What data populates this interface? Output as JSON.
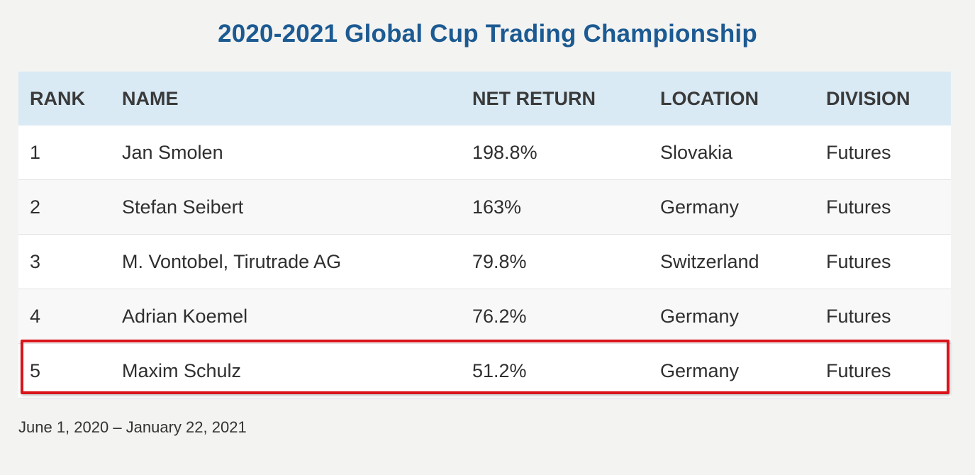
{
  "title": "2020-2021 Global Cup Trading Championship",
  "columns": {
    "rank": "RANK",
    "name": "NAME",
    "net_return": "NET RETURN",
    "location": "LOCATION",
    "division": "DIVISION"
  },
  "rows": [
    {
      "rank": "1",
      "name": "Jan Smolen",
      "net_return": "198.8%",
      "location": "Slovakia",
      "division": "Futures"
    },
    {
      "rank": "2",
      "name": "Stefan Seibert",
      "net_return": "163%",
      "location": "Germany",
      "division": "Futures"
    },
    {
      "rank": "3",
      "name": "M. Vontobel, Tirutrade AG",
      "net_return": "79.8%",
      "location": "Switzerland",
      "division": "Futures"
    },
    {
      "rank": "4",
      "name": "Adrian Koemel",
      "net_return": "76.2%",
      "location": "Germany",
      "division": "Futures"
    },
    {
      "rank": "5",
      "name": "Maxim Schulz",
      "net_return": "51.2%",
      "location": "Germany",
      "division": "Futures"
    }
  ],
  "highlighted_row": "5",
  "footnote": "June 1, 2020 – January 22, 2021",
  "colors": {
    "title": "#1c5a92",
    "header_bg": "#d9eaf5",
    "highlight_border": "#d9141b"
  }
}
